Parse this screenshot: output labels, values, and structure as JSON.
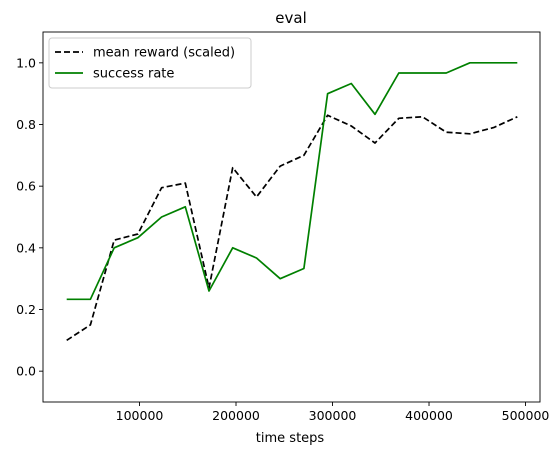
{
  "chart_data": {
    "type": "line",
    "title": "eval",
    "xlabel": "time steps",
    "ylabel": "",
    "xlim": [
      0,
      515000
    ],
    "ylim": [
      -0.1,
      1.1
    ],
    "xticks": [
      100000,
      200000,
      300000,
      400000,
      500000
    ],
    "xtick_labels": [
      "100000",
      "200000",
      "300000",
      "400000",
      "500000"
    ],
    "yticks": [
      0.0,
      0.2,
      0.4,
      0.6,
      0.8,
      1.0
    ],
    "ytick_labels": [
      "0.0",
      "0.2",
      "0.4",
      "0.6",
      "0.8",
      "1.0"
    ],
    "grid": false,
    "legend_position": "upper-left",
    "x": [
      24576,
      49152,
      73728,
      98304,
      122880,
      147456,
      172032,
      196608,
      221184,
      245760,
      270336,
      294912,
      319488,
      344064,
      368640,
      393216,
      417792,
      442368,
      466944,
      491520
    ],
    "series": [
      {
        "name": "mean reward (scaled)",
        "color": "#000000",
        "style": "dashed",
        "values": [
          0.1,
          0.15,
          0.425,
          0.445,
          0.595,
          0.61,
          0.27,
          0.66,
          0.565,
          0.665,
          0.7,
          0.83,
          0.795,
          0.74,
          0.82,
          0.825,
          0.775,
          0.77,
          0.79,
          0.825
        ]
      },
      {
        "name": "success rate",
        "color": "#008000",
        "style": "solid",
        "values": [
          0.233,
          0.233,
          0.4,
          0.433,
          0.5,
          0.533,
          0.26,
          0.4,
          0.367,
          0.3,
          0.333,
          0.9,
          0.933,
          0.833,
          0.967,
          0.967,
          0.967,
          1.0,
          1.0,
          1.0
        ]
      }
    ]
  }
}
